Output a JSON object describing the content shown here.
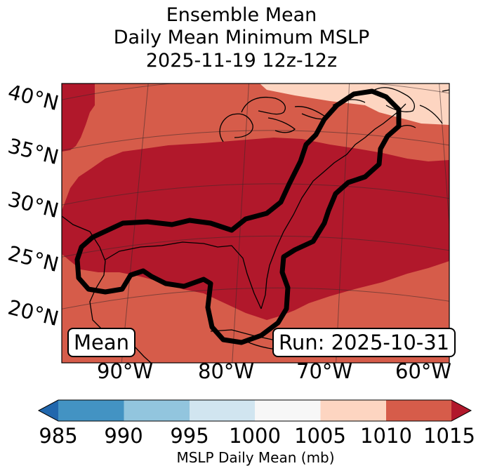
{
  "title": {
    "line1": "Ensemble Mean",
    "line2": "Daily Mean Minimum MSLP",
    "line3": "2025-11-19 12z-12z"
  },
  "map": {
    "lat_labels": [
      "40°N",
      "35°N",
      "30°N",
      "25°N",
      "20°N"
    ],
    "lon_labels": [
      "90°W",
      "80°W",
      "70°W",
      "60°W"
    ],
    "mean_label": "Mean",
    "run_label": "Run: 2025-10-31",
    "fill_colors": {
      "1005_1010": "#fdd5c1",
      "1010_1015": "#d65c4a",
      "above_1015": "#b1182b"
    },
    "contour_color": "#000000"
  },
  "colorbar": {
    "ticks": [
      "985",
      "990",
      "995",
      "1000",
      "1005",
      "1010",
      "1015"
    ],
    "label": "MSLP Daily Mean (mb)",
    "colors": [
      "#2167ad",
      "#4393c3",
      "#92c5de",
      "#d1e5f0",
      "#f7f7f7",
      "#fdd5c1",
      "#d65c4a",
      "#b1182b"
    ]
  }
}
